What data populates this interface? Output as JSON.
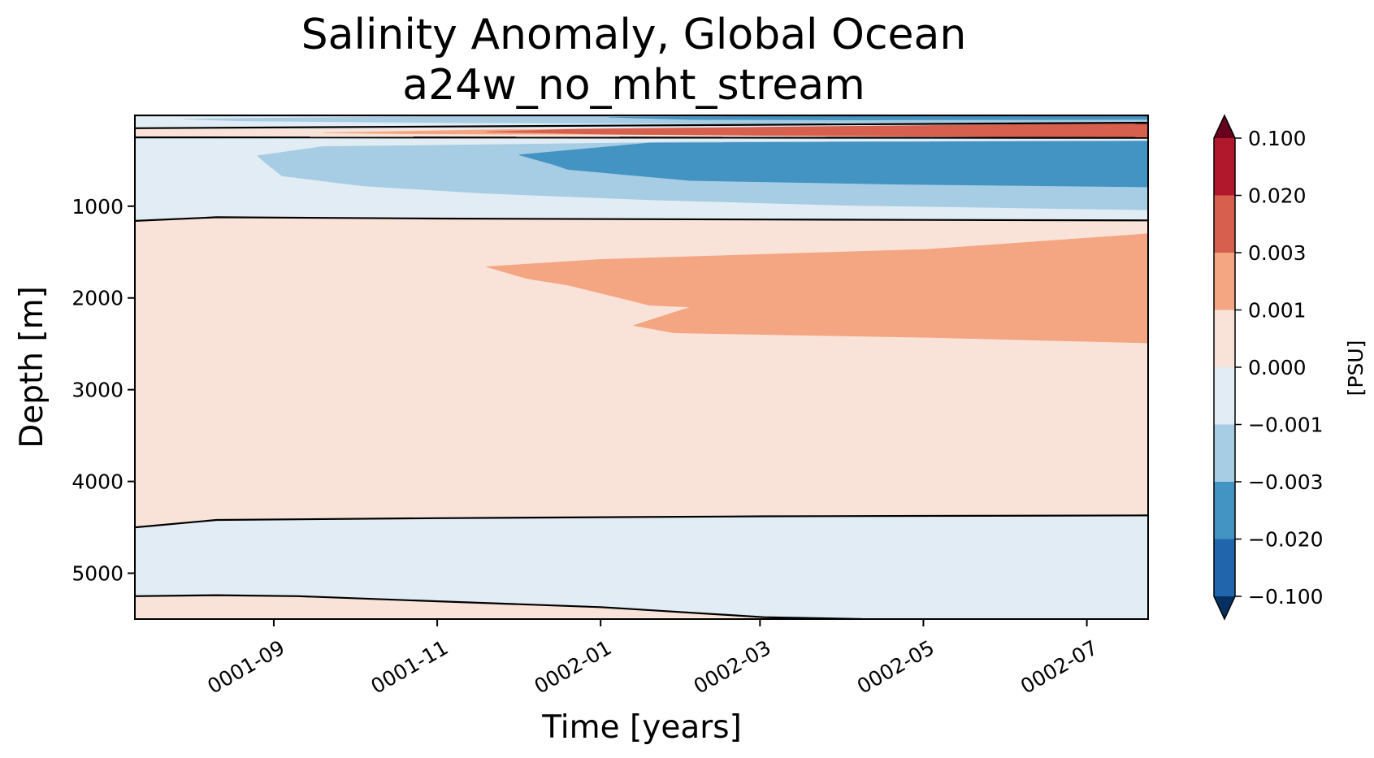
{
  "chart_data": {
    "type": "filled-contour",
    "title": "Salinity Anomaly, Global Ocean",
    "subtitle": "a24w_no_mht_stream",
    "xlabel": "Time [years]",
    "ylabel": "Depth [m]",
    "xlim_months": [
      7.2,
      19.6
    ],
    "ylim": [
      5500,
      10
    ],
    "x_ticks": [
      {
        "label": "0001-09",
        "month": 8.9
      },
      {
        "label": "0001-11",
        "month": 10.9
      },
      {
        "label": "0002-01",
        "month": 12.9
      },
      {
        "label": "0002-03",
        "month": 14.85
      },
      {
        "label": "0002-05",
        "month": 16.85
      },
      {
        "label": "0002-07",
        "month": 18.85
      }
    ],
    "y_ticks": [
      {
        "label": "1000",
        "value": 1000
      },
      {
        "label": "2000",
        "value": 2000
      },
      {
        "label": "3000",
        "value": 3000
      },
      {
        "label": "4000",
        "value": 4000
      },
      {
        "label": "5000",
        "value": 5000
      }
    ],
    "colorbar": {
      "label": "[PSU]",
      "levels": [
        "0.100",
        "0.020",
        "0.003",
        "0.001",
        "0.000",
        "−0.001",
        "−0.003",
        "−0.020",
        "−0.100"
      ],
      "colors": [
        "#b2182b",
        "#d6604d",
        "#f4a582",
        "#f9e3d8",
        "#e1ecf4",
        "#a6cde3",
        "#4393c3",
        "#2166ac"
      ],
      "extend_max_color": "#67001f",
      "extend_min_color": "#053061"
    },
    "regions": [
      {
        "name": "bottom-layer",
        "anomaly_band": "0.000 to 0.001",
        "color": "#f9e3d8",
        "points": [
          [
            7.2,
            5250
          ],
          [
            8.2,
            5240
          ],
          [
            9.2,
            5250
          ],
          [
            10.7,
            5300
          ],
          [
            12.9,
            5370
          ],
          [
            14.9,
            5480
          ],
          [
            16.1,
            5500
          ],
          [
            7.2,
            5500
          ]
        ]
      },
      {
        "name": "abyssal-negative",
        "anomaly_band": "−0.001 to 0.000",
        "color": "#e1ecf4",
        "points": [
          [
            7.2,
            4500
          ],
          [
            8.2,
            4420
          ],
          [
            10.9,
            4400
          ],
          [
            14.9,
            4380
          ],
          [
            19.6,
            4370
          ],
          [
            19.6,
            5500
          ],
          [
            16.1,
            5500
          ],
          [
            14.9,
            5480
          ],
          [
            12.9,
            5370
          ],
          [
            10.7,
            5300
          ],
          [
            9.2,
            5250
          ],
          [
            8.2,
            5240
          ],
          [
            7.2,
            5250
          ]
        ]
      },
      {
        "name": "deep-positive",
        "anomaly_band": "0.000 to 0.001",
        "color": "#f9e3d8",
        "points": [
          [
            7.2,
            1160
          ],
          [
            8.2,
            1120
          ],
          [
            10.9,
            1135
          ],
          [
            14.9,
            1145
          ],
          [
            19.6,
            1155
          ],
          [
            19.6,
            4370
          ],
          [
            14.9,
            4380
          ],
          [
            10.9,
            4400
          ],
          [
            8.2,
            4420
          ],
          [
            7.2,
            4500
          ]
        ]
      },
      {
        "name": "deep-positive-core",
        "anomaly_band": "0.001 to 0.003",
        "color": "#f4a582",
        "points": [
          [
            11.5,
            1660
          ],
          [
            12.9,
            1580
          ],
          [
            16.9,
            1470
          ],
          [
            19.6,
            1300
          ],
          [
            19.6,
            2490
          ],
          [
            16.9,
            2430
          ],
          [
            13.8,
            2380
          ],
          [
            13.3,
            2300
          ],
          [
            14.0,
            2100
          ],
          [
            13.5,
            2080
          ],
          [
            12.5,
            1860
          ],
          [
            12.0,
            1790
          ]
        ]
      },
      {
        "name": "intermediate-negative",
        "anomaly_band": "−0.001 to 0.000",
        "color": "#e1ecf4",
        "points": [
          [
            7.2,
            250
          ],
          [
            19.6,
            255
          ],
          [
            19.6,
            1155
          ],
          [
            14.9,
            1145
          ],
          [
            10.9,
            1135
          ],
          [
            8.2,
            1120
          ],
          [
            7.2,
            1160
          ]
        ]
      },
      {
        "name": "intermediate-negative-mid",
        "anomaly_band": "−0.003 to −0.001",
        "color": "#a6cde3",
        "points": [
          [
            8.7,
            450
          ],
          [
            9.5,
            350
          ],
          [
            11.5,
            330
          ],
          [
            14.0,
            300
          ],
          [
            19.6,
            290
          ],
          [
            19.6,
            1040
          ],
          [
            15.9,
            990
          ],
          [
            13.5,
            930
          ],
          [
            11.5,
            860
          ],
          [
            10.0,
            780
          ],
          [
            9.0,
            670
          ],
          [
            8.8,
            530
          ]
        ]
      },
      {
        "name": "intermediate-negative-core",
        "anomaly_band": "−0.020 to −0.003",
        "color": "#4393c3",
        "points": [
          [
            11.9,
            440
          ],
          [
            13.5,
            310
          ],
          [
            16.0,
            300
          ],
          [
            19.6,
            290
          ],
          [
            19.6,
            790
          ],
          [
            16.5,
            760
          ],
          [
            14.0,
            720
          ],
          [
            12.5,
            600
          ],
          [
            12.3,
            540
          ]
        ]
      },
      {
        "name": "upper-positive",
        "anomaly_band": "0.000 to 0.001",
        "color": "#f9e3d8",
        "points": [
          [
            7.2,
            150
          ],
          [
            19.6,
            90
          ],
          [
            19.6,
            255
          ],
          [
            7.2,
            250
          ]
        ]
      },
      {
        "name": "upper-positive-mid",
        "anomaly_band": "0.001 to 0.003",
        "color": "#f4a582",
        "points": [
          [
            9.5,
            200
          ],
          [
            12.0,
            160
          ],
          [
            19.6,
            90
          ],
          [
            19.6,
            250
          ],
          [
            14.0,
            220
          ],
          [
            12.0,
            215
          ],
          [
            10.5,
            210
          ]
        ]
      },
      {
        "name": "upper-positive-core",
        "anomaly_band": "0.003 to 0.020",
        "color": "#d6604d",
        "points": [
          [
            11.5,
            190
          ],
          [
            13.0,
            150
          ],
          [
            15.0,
            110
          ],
          [
            19.6,
            80
          ],
          [
            19.6,
            250
          ],
          [
            15.0,
            230
          ],
          [
            13.0,
            215
          ]
        ]
      },
      {
        "name": "surface-negative",
        "anomaly_band": "−0.001 to 0.000",
        "color": "#e1ecf4",
        "points": [
          [
            7.2,
            10
          ],
          [
            19.6,
            10
          ],
          [
            19.6,
            90
          ],
          [
            12.0,
            160
          ],
          [
            7.2,
            150
          ]
        ]
      },
      {
        "name": "surface-negative-mid",
        "anomaly_band": "−0.003 to −0.001",
        "color": "#a6cde3",
        "points": [
          [
            7.8,
            50
          ],
          [
            11.0,
            20
          ],
          [
            19.6,
            10
          ],
          [
            19.6,
            80
          ],
          [
            14.0,
            100
          ],
          [
            11.0,
            90
          ],
          [
            8.5,
            70
          ]
        ]
      },
      {
        "name": "surface-negative-core",
        "anomaly_band": "−0.020 to −0.003",
        "color": "#4393c3",
        "points": [
          [
            13.0,
            30
          ],
          [
            16.0,
            15
          ],
          [
            19.6,
            10
          ],
          [
            19.6,
            55
          ],
          [
            16.0,
            60
          ],
          [
            14.0,
            55
          ]
        ]
      }
    ],
    "contour_lines": [
      {
        "name": "zero-contour-surface",
        "points": [
          [
            7.2,
            10
          ],
          [
            19.6,
            10
          ]
        ]
      },
      {
        "name": "zero-contour-upper",
        "points": [
          [
            7.2,
            150
          ],
          [
            19.6,
            90
          ]
        ]
      },
      {
        "name": "zero-contour-upper-lower",
        "points": [
          [
            7.2,
            250
          ],
          [
            19.6,
            255
          ]
        ]
      },
      {
        "name": "zero-contour-intermediate",
        "points": [
          [
            7.2,
            1160
          ],
          [
            8.2,
            1120
          ],
          [
            10.9,
            1135
          ],
          [
            14.9,
            1145
          ],
          [
            19.6,
            1155
          ]
        ]
      },
      {
        "name": "zero-contour-abyssal",
        "points": [
          [
            7.2,
            4500
          ],
          [
            8.2,
            4420
          ],
          [
            10.9,
            4400
          ],
          [
            14.9,
            4380
          ],
          [
            19.6,
            4370
          ]
        ]
      },
      {
        "name": "zero-contour-bottom",
        "points": [
          [
            7.2,
            5250
          ],
          [
            8.2,
            5240
          ],
          [
            9.2,
            5250
          ],
          [
            10.7,
            5300
          ],
          [
            12.9,
            5370
          ],
          [
            14.9,
            5480
          ],
          [
            16.1,
            5500
          ]
        ]
      }
    ]
  }
}
